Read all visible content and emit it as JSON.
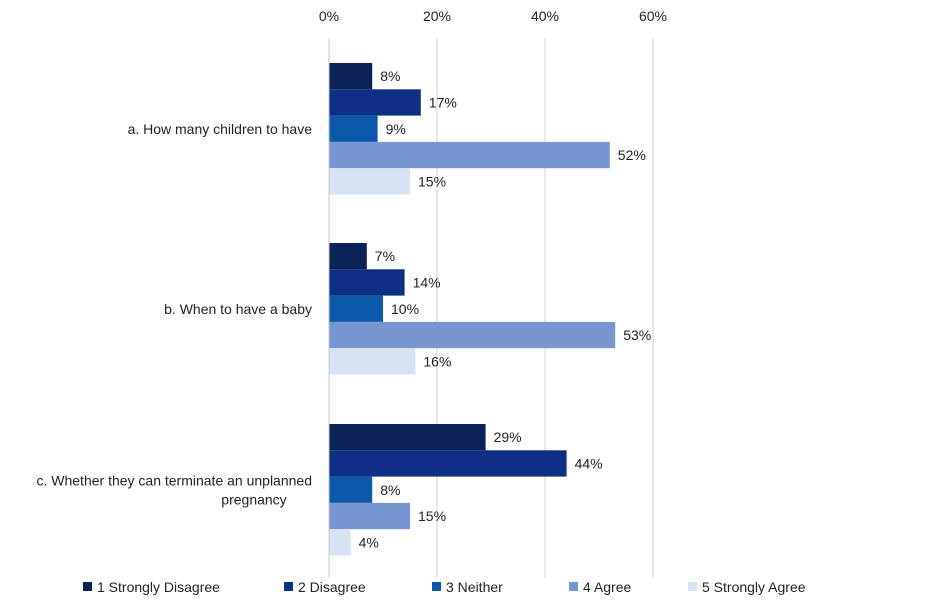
{
  "chart_data": {
    "type": "bar",
    "orientation": "horizontal",
    "categories": [
      "a. How many children to have",
      "b. When to have a baby",
      "c. Whether they can terminate an unplanned pregnancy"
    ],
    "category_lines": [
      [
        "a. How many children to have"
      ],
      [
        "b. When to have a baby"
      ],
      [
        "c. Whether they can terminate an unplanned",
        "pregnancy"
      ]
    ],
    "series": [
      {
        "name": "1 Strongly Disagree",
        "color": "#0b2256",
        "values": [
          8,
          7,
          29
        ],
        "labels": [
          "8%",
          "7%",
          "29%"
        ]
      },
      {
        "name": "2 Disagree",
        "color": "#0d2f86",
        "values": [
          17,
          14,
          44
        ],
        "labels": [
          "17%",
          "14%",
          "44%"
        ]
      },
      {
        "name": "3 Neither",
        "color": "#0c58aa",
        "values": [
          9,
          10,
          8
        ],
        "labels": [
          "9%",
          "10%",
          "8%"
        ]
      },
      {
        "name": "4 Agree",
        "color": "#7896d2",
        "values": [
          52,
          53,
          15
        ],
        "labels": [
          "52%",
          "53%",
          "15%"
        ]
      },
      {
        "name": "5 Strongly Agree",
        "color": "#d6e4f3",
        "values": [
          15,
          16,
          4
        ],
        "labels": [
          "15%",
          "16%",
          "4%"
        ]
      }
    ],
    "x_ticks": [
      0,
      20,
      40,
      60
    ],
    "x_tick_labels": [
      "0%",
      "20%",
      "40%",
      "60%"
    ],
    "xlim": [
      0,
      60
    ],
    "axis_position": "top",
    "grid": true,
    "legend_position": "bottom"
  }
}
